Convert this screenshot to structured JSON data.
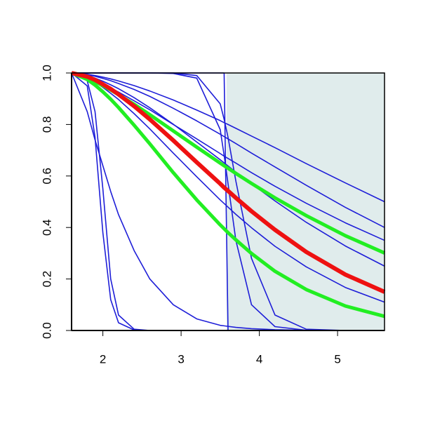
{
  "chart_data": {
    "type": "line",
    "xlim": [
      1.6,
      5.6
    ],
    "ylim": [
      0,
      1
    ],
    "xticks": [
      2,
      3,
      4,
      5
    ],
    "yticks": [
      {
        "value": 0,
        "label": "0.0"
      },
      0.2,
      0.4,
      0.6,
      0.8,
      {
        "value": 1,
        "label": "1.0"
      }
    ],
    "shaded_region": {
      "x": [
        3.58,
        5.6
      ],
      "color": "#e0ecec"
    },
    "x": [
      1.6,
      1.8,
      1.9,
      2.0,
      2.1,
      2.2,
      2.4,
      2.6,
      2.9,
      3.2,
      3.5,
      3.55,
      3.6,
      3.7,
      3.9,
      4.2,
      4.6,
      5.1,
      5.6
    ],
    "series": [
      {
        "color": "#1e1ed8",
        "width": 1.6,
        "values": [
          1,
          0.995,
          0.99,
          0.984,
          0.977,
          0.969,
          0.951,
          0.93,
          0.895,
          0.856,
          0.815,
          0.807,
          0.8,
          0.785,
          0.755,
          0.71,
          0.648,
          0.573,
          0.5
        ]
      },
      {
        "color": "#1e1ed8",
        "width": 1.6,
        "values": [
          1,
          0.993,
          0.987,
          0.979,
          0.97,
          0.959,
          0.936,
          0.909,
          0.863,
          0.814,
          0.762,
          0.753,
          0.744,
          0.726,
          0.689,
          0.635,
          0.564,
          0.478,
          0.4
        ]
      },
      {
        "color": "#1e1ed8",
        "width": 1.6,
        "values": [
          1,
          0.983,
          0.971,
          0.957,
          0.942,
          0.926,
          0.892,
          0.857,
          0.8,
          0.744,
          0.687,
          0.677,
          0.668,
          0.65,
          0.613,
          0.56,
          0.494,
          0.418,
          0.35
        ]
      },
      {
        "color": "#1e1ed8",
        "width": 1.6,
        "values": [
          1,
          0.99,
          0.98,
          0.968,
          0.954,
          0.939,
          0.904,
          0.865,
          0.801,
          0.732,
          0.663,
          0.651,
          0.639,
          0.615,
          0.57,
          0.503,
          0.42,
          0.328,
          0.25
        ]
      },
      {
        "color": "#1e1ed8",
        "width": 1.6,
        "values": [
          1,
          0.981,
          0.964,
          0.944,
          0.921,
          0.897,
          0.842,
          0.783,
          0.689,
          0.597,
          0.507,
          0.493,
          0.479,
          0.451,
          0.399,
          0.327,
          0.247,
          0.167,
          0.11
        ]
      },
      {
        "color": "#1e1ed8",
        "width": 1.6,
        "values": [
          1,
          0.95,
          0.75,
          0.38,
          0.12,
          0.03,
          0.002,
          0,
          0,
          0,
          0,
          0,
          0,
          0,
          0,
          0,
          0,
          0,
          0
        ]
      },
      {
        "color": "#1e1ed8",
        "width": 1.6,
        "values": [
          1,
          0.97,
          0.85,
          0.55,
          0.2,
          0.06,
          0.005,
          0,
          0,
          0,
          0,
          0,
          0,
          0,
          0,
          0,
          0,
          0,
          0
        ]
      },
      {
        "color": "#1e1ed8",
        "width": 1.6,
        "values": [
          1,
          0.85,
          0.74,
          0.64,
          0.54,
          0.45,
          0.31,
          0.2,
          0.1,
          0.045,
          0.02,
          0.018,
          0.016,
          0.012,
          0.007,
          0.003,
          0.001,
          0,
          0
        ]
      },
      {
        "color": "#1e1ed8",
        "width": 1.6,
        "values": [
          1,
          1,
          1,
          1,
          1,
          1,
          1,
          1,
          0.998,
          0.98,
          0.78,
          0.68,
          0.57,
          0.35,
          0.1,
          0.015,
          0.001,
          0,
          0
        ]
      },
      {
        "color": "#1e1ed8",
        "width": 1.6,
        "values": [
          1,
          1,
          1,
          1,
          1,
          1,
          1,
          1,
          1,
          1,
          1,
          1,
          0,
          0,
          0,
          0,
          0,
          0,
          0
        ]
      },
      {
        "color": "#1e1ed8",
        "width": 1.6,
        "values": [
          1,
          1,
          1,
          1,
          1,
          1,
          1,
          1,
          1,
          0.99,
          0.88,
          0.82,
          0.75,
          0.58,
          0.28,
          0.06,
          0.005,
          0,
          0
        ]
      },
      {
        "color": "#22ee22",
        "width": 5,
        "values": [
          1,
          0.981,
          0.967,
          0.951,
          0.934,
          0.916,
          0.878,
          0.838,
          0.775,
          0.712,
          0.65,
          0.64,
          0.63,
          0.61,
          0.571,
          0.515,
          0.446,
          0.368,
          0.301
        ]
      },
      {
        "color": "#22ee22",
        "width": 5,
        "values": [
          1,
          0.975,
          0.953,
          0.927,
          0.898,
          0.866,
          0.797,
          0.725,
          0.613,
          0.507,
          0.41,
          0.395,
          0.38,
          0.352,
          0.299,
          0.23,
          0.159,
          0.095,
          0.055
        ]
      },
      {
        "color": "#ee1111",
        "width": 6,
        "values": [
          1,
          0.986,
          0.973,
          0.956,
          0.938,
          0.917,
          0.871,
          0.82,
          0.738,
          0.653,
          0.57,
          0.555,
          0.542,
          0.515,
          0.463,
          0.391,
          0.305,
          0.217,
          0.15
        ]
      }
    ]
  }
}
